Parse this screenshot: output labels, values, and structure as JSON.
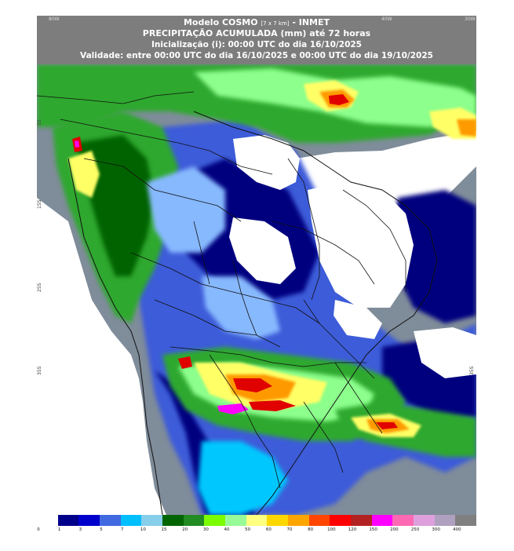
{
  "header": {
    "title": "Modelo COSMO",
    "title_note": "[7 x 7 km]",
    "title_suffix": "- INMET",
    "subtitle": "PRECIPITAÇÃO ACUMULADA (mm) até 72 horas",
    "init": "Inicialização (i): 00:00 UTC do dia 16/10/2025",
    "validity": "Validade: entre 00:00 UTC do dia 16/10/2025 e 00:00 UTC do dia 19/10/2025"
  },
  "map": {
    "lon_labels": [
      "80W",
      "40W",
      "30W"
    ],
    "lat_labels": [
      "5S",
      "15S",
      "25S",
      "35S"
    ],
    "right_lat_label": "35S"
  },
  "colorbar": {
    "colors": [
      "#ffffff",
      "#00008b",
      "#0000cd",
      "#4169e1",
      "#00bfff",
      "#87ceeb",
      "#006400",
      "#228b22",
      "#7cfc00",
      "#98fb98",
      "#ffff80",
      "#ffd700",
      "#ffa500",
      "#ff4500",
      "#ff0000",
      "#b22222",
      "#ff00ff",
      "#ff69b4",
      "#dda0dd",
      "#b0a0c0",
      "#808080"
    ],
    "labels": [
      "0",
      "1",
      "3",
      "5",
      "7",
      "10",
      "15",
      "20",
      "30",
      "40",
      "50",
      "60",
      "70",
      "80",
      "100",
      "120",
      "150",
      "200",
      "250",
      "300",
      "400"
    ]
  },
  "colors": {
    "land": "#ffffff",
    "ocean": "#7f8c9a",
    "very_dark_blue": "#00007f",
    "blue": "#3d5bd9",
    "light_blue": "#87b9ff",
    "cyan": "#00c8ff",
    "dark_green": "#006400",
    "green": "#2ea82e",
    "light_green": "#8cff8c",
    "yellow": "#ffff66",
    "orange": "#ff9900",
    "red": "#e00000",
    "magenta": "#ff00ff"
  }
}
